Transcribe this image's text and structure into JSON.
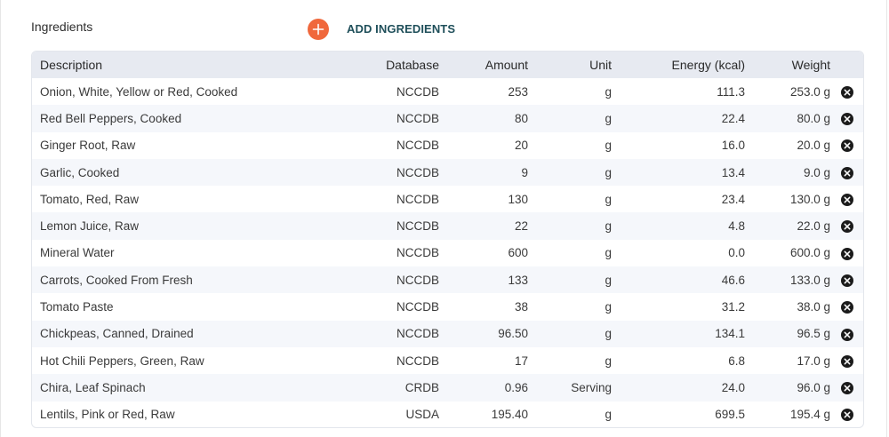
{
  "section": {
    "title": "Ingredients",
    "add_label": "ADD INGREDIENTS",
    "add_icon": "plus-icon"
  },
  "colors": {
    "accent": "#f0683c",
    "link": "#1f4f5a",
    "header_bg": "#e7eaf1"
  },
  "table": {
    "headers": {
      "description": "Description",
      "database": "Database",
      "amount": "Amount",
      "unit": "Unit",
      "energy": "Energy (kcal)",
      "weight": "Weight"
    },
    "rows": [
      {
        "description": "Onion, White, Yellow or Red, Cooked",
        "database": "NCCDB",
        "amount": "253",
        "unit": "g",
        "energy": "111.3",
        "weight": "253.0 g"
      },
      {
        "description": "Red Bell Peppers, Cooked",
        "database": "NCCDB",
        "amount": "80",
        "unit": "g",
        "energy": "22.4",
        "weight": "80.0 g"
      },
      {
        "description": "Ginger Root, Raw",
        "database": "NCCDB",
        "amount": "20",
        "unit": "g",
        "energy": "16.0",
        "weight": "20.0 g"
      },
      {
        "description": "Garlic, Cooked",
        "database": "NCCDB",
        "amount": "9",
        "unit": "g",
        "energy": "13.4",
        "weight": "9.0 g"
      },
      {
        "description": "Tomato, Red, Raw",
        "database": "NCCDB",
        "amount": "130",
        "unit": "g",
        "energy": "23.4",
        "weight": "130.0 g"
      },
      {
        "description": "Lemon Juice, Raw",
        "database": "NCCDB",
        "amount": "22",
        "unit": "g",
        "energy": "4.8",
        "weight": "22.0 g"
      },
      {
        "description": "Mineral Water",
        "database": "NCCDB",
        "amount": "600",
        "unit": "g",
        "energy": "0.0",
        "weight": "600.0 g"
      },
      {
        "description": "Carrots, Cooked From Fresh",
        "database": "NCCDB",
        "amount": "133",
        "unit": "g",
        "energy": "46.6",
        "weight": "133.0 g"
      },
      {
        "description": "Tomato Paste",
        "database": "NCCDB",
        "amount": "38",
        "unit": "g",
        "energy": "31.2",
        "weight": "38.0 g"
      },
      {
        "description": "Chickpeas, Canned, Drained",
        "database": "NCCDB",
        "amount": "96.50",
        "unit": "g",
        "energy": "134.1",
        "weight": "96.5 g"
      },
      {
        "description": "Hot Chili Peppers, Green, Raw",
        "database": "NCCDB",
        "amount": "17",
        "unit": "g",
        "energy": "6.8",
        "weight": "17.0 g"
      },
      {
        "description": "Chira, Leaf Spinach",
        "database": "CRDB",
        "amount": "0.96",
        "unit": "Serving",
        "energy": "24.0",
        "weight": "96.0 g"
      },
      {
        "description": "Lentils, Pink or Red, Raw",
        "database": "USDA",
        "amount": "195.40",
        "unit": "g",
        "energy": "699.5",
        "weight": "195.4 g"
      }
    ],
    "delete_icon": "close-circle-icon"
  }
}
